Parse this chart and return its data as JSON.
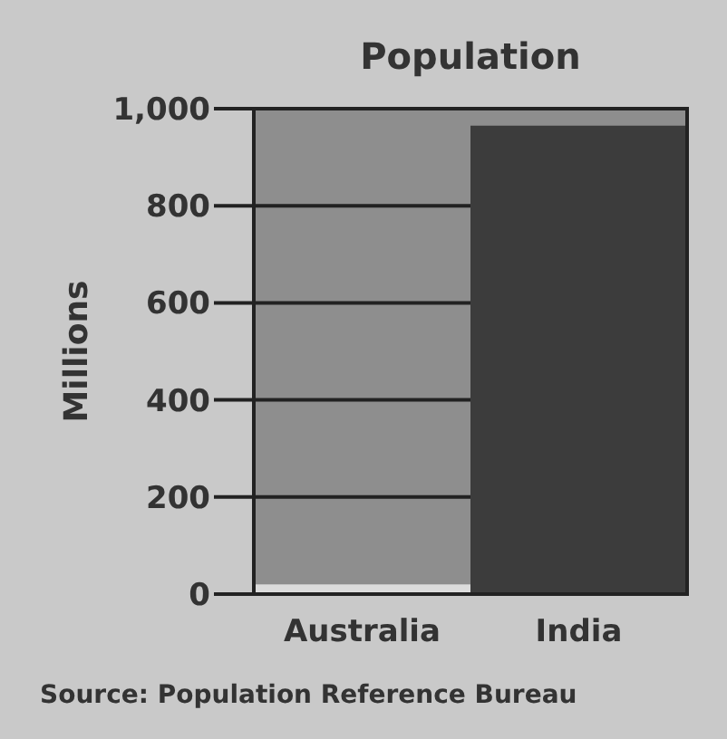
{
  "chart_data": {
    "type": "bar",
    "title": "Population",
    "ylabel": "Millions",
    "categories": [
      "Australia",
      "India"
    ],
    "values": [
      20,
      965
    ],
    "colors": [
      "#dcdcdc",
      "#3c3c3c"
    ],
    "ylim": [
      0,
      1000
    ],
    "yticks": [
      0,
      200,
      400,
      600,
      800,
      {
        "value": 1000,
        "label": "1,000"
      }
    ],
    "grid": "y",
    "annotations": [
      "Source: Population Reference Bureau"
    ]
  }
}
